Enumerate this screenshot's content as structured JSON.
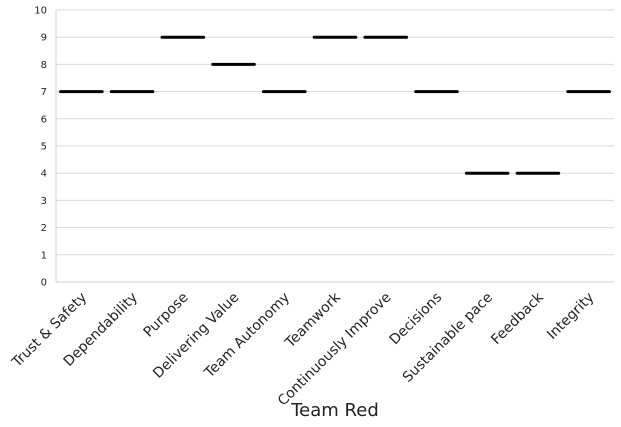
{
  "chart_data": {
    "type": "box",
    "categories": [
      "Trust & Safety",
      "Dependability",
      "Purpose",
      "Delivering Value",
      "Team Autonomy",
      "Teamwork",
      "Continuously Improve",
      "Decisions",
      "Sustainable pace",
      "Feedback",
      "Integrity"
    ],
    "values": [
      7,
      7,
      9,
      8,
      7,
      9,
      9,
      7,
      4,
      4,
      7
    ],
    "xlabel": "Team Red",
    "ylabel": "",
    "ylim": [
      0,
      10
    ],
    "yticks": [
      0,
      1,
      2,
      3,
      4,
      5,
      6,
      7,
      8,
      9,
      10
    ],
    "grid": "horizontal",
    "colors": {
      "grid": "#d9d9d9",
      "axis": "#d0d0d0",
      "mark": "#000000"
    }
  }
}
